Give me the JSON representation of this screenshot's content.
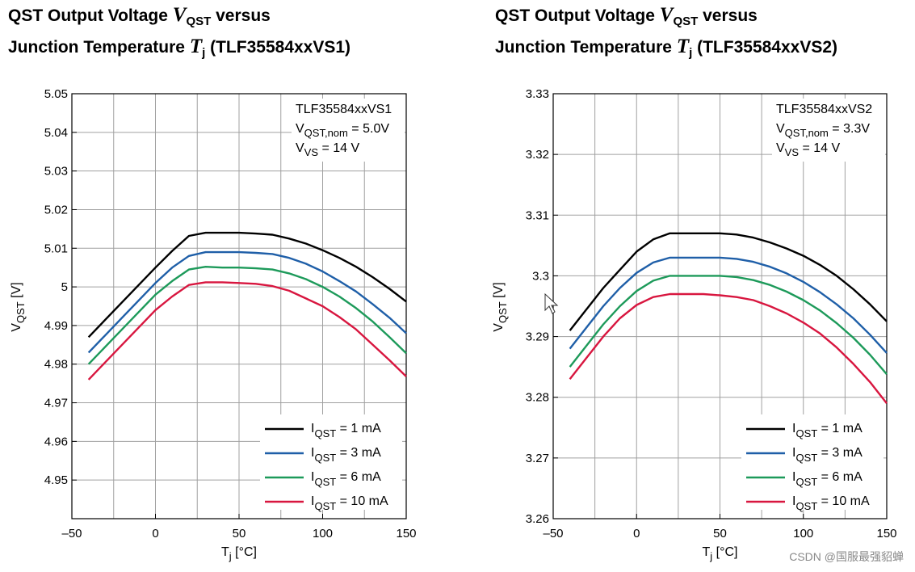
{
  "titles": [
    {
      "line1_pre": "QST Output Voltage ",
      "sym1": "V",
      "sym1_sub": "QST",
      "line1_post": " versus",
      "line2_pre": "Junction Temperature ",
      "sym2": "T",
      "sym2_sub": "j",
      "line2_post": " (TLF35584xxVS1)"
    },
    {
      "line1_pre": "QST Output Voltage ",
      "sym1": "V",
      "sym1_sub": "QST",
      "line1_post": " versus",
      "line2_pre": "Junction Temperature ",
      "sym2": "T",
      "sym2_sub": "j",
      "line2_post": " (TLF35584xxVS2)"
    }
  ],
  "watermark": "CSDN @国服最强貂蝉",
  "chart_data": [
    {
      "type": "line",
      "title": "QST Output Voltage VQST versus Junction Temperature Tj (TLF35584xxVS1)",
      "xlabel": {
        "main": "T",
        "sub": "j",
        "unit": " [°C]"
      },
      "ylabel": {
        "main": "V",
        "sub": "QST",
        "unit": " [V]"
      },
      "xlim": [
        -50,
        150
      ],
      "ylim": [
        4.94,
        5.05
      ],
      "xticks": [
        -50,
        0,
        50,
        100,
        150
      ],
      "xtick_labels": [
        "–50",
        "0",
        "50",
        "100",
        "150"
      ],
      "xgrid": [
        -50,
        -25,
        0,
        25,
        50,
        75,
        100,
        125,
        150
      ],
      "yticks": [
        4.95,
        4.96,
        4.97,
        4.98,
        4.99,
        5.0,
        5.01,
        5.02,
        5.03,
        5.04,
        5.05
      ],
      "ytick_labels": [
        "4.95",
        "4.96",
        "4.97",
        "4.98",
        "4.99",
        "5",
        "5.01",
        "5.02",
        "5.03",
        "5.04",
        "5.05"
      ],
      "annotation": {
        "line1": "TLF35584xxVS1",
        "line2_main": "V",
        "line2_sub": "QST,nom",
        "line2_val": " = 5.0V",
        "line3_main": "V",
        "line3_sub": "VS",
        "line3_val": " = 14 V"
      },
      "legend_position": "bottom-right",
      "x": [
        -40,
        -30,
        -20,
        -10,
        0,
        10,
        20,
        30,
        40,
        50,
        60,
        70,
        80,
        90,
        100,
        110,
        120,
        130,
        140,
        150
      ],
      "series": [
        {
          "name_main": "I",
          "name_sub": "QST",
          "name_val": " = 1 mA",
          "color": "#000000",
          "values": [
            4.987,
            4.9915,
            4.996,
            5.0005,
            5.005,
            5.0093,
            5.0132,
            5.014,
            5.014,
            5.014,
            5.0138,
            5.0135,
            5.0125,
            5.0112,
            5.0095,
            5.0075,
            5.0052,
            5.0025,
            4.9995,
            4.9962
          ]
        },
        {
          "name_main": "I",
          "name_sub": "QST",
          "name_val": " = 3 mA",
          "color": "#1f5fa8",
          "values": [
            4.983,
            4.9875,
            4.992,
            4.9965,
            5.001,
            5.005,
            5.008,
            5.009,
            5.009,
            5.009,
            5.0088,
            5.0085,
            5.0075,
            5.006,
            5.004,
            5.0015,
            4.9988,
            4.9955,
            4.992,
            4.988
          ]
        },
        {
          "name_main": "I",
          "name_sub": "QST",
          "name_val": " = 6 mA",
          "color": "#1d9a5a",
          "values": [
            4.98,
            4.9845,
            4.989,
            4.9935,
            4.998,
            5.0015,
            5.0045,
            5.0052,
            5.005,
            5.005,
            5.0048,
            5.0045,
            5.0035,
            5.002,
            5.0,
            4.9975,
            4.9945,
            4.991,
            4.987,
            4.9828
          ]
        },
        {
          "name_main": "I",
          "name_sub": "QST",
          "name_val": " = 10 mA",
          "color": "#d8163f",
          "values": [
            4.976,
            4.9805,
            4.985,
            4.9895,
            4.994,
            4.9975,
            5.0005,
            5.0012,
            5.0012,
            5.001,
            5.0008,
            5.0002,
            4.999,
            4.997,
            4.995,
            4.9922,
            4.989,
            4.985,
            4.981,
            4.9768
          ]
        }
      ]
    },
    {
      "type": "line",
      "title": "QST Output Voltage VQST versus Junction Temperature Tj (TLF35584xxVS2)",
      "xlabel": {
        "main": "T",
        "sub": "j",
        "unit": " [°C]"
      },
      "ylabel": {
        "main": "V",
        "sub": "QST",
        "unit": " [V]"
      },
      "xlim": [
        -50,
        150
      ],
      "ylim": [
        3.26,
        3.33
      ],
      "xticks": [
        -50,
        0,
        50,
        100,
        150
      ],
      "xtick_labels": [
        "–50",
        "0",
        "50",
        "100",
        "150"
      ],
      "xgrid": [
        -50,
        -25,
        0,
        25,
        50,
        75,
        100,
        125,
        150
      ],
      "yticks": [
        3.26,
        3.27,
        3.28,
        3.29,
        3.3,
        3.31,
        3.32,
        3.33
      ],
      "ytick_labels": [
        "3.26",
        "3.27",
        "3.28",
        "3.29",
        "3.3",
        "3.31",
        "3.32",
        "3.33"
      ],
      "annotation": {
        "line1": "TLF35584xxVS2",
        "line2_main": "V",
        "line2_sub": "QST,nom",
        "line2_val": " = 3.3V",
        "line3_main": "V",
        "line3_sub": "VS",
        "line3_val": " = 14 V"
      },
      "legend_position": "bottom-right",
      "x": [
        -40,
        -30,
        -20,
        -10,
        0,
        10,
        20,
        30,
        40,
        50,
        60,
        70,
        80,
        90,
        100,
        110,
        120,
        130,
        140,
        150
      ],
      "series": [
        {
          "name_main": "I",
          "name_sub": "QST",
          "name_val": " = 1 mA",
          "color": "#000000",
          "values": [
            3.291,
            3.2945,
            3.298,
            3.301,
            3.304,
            3.306,
            3.307,
            3.307,
            3.307,
            3.307,
            3.3068,
            3.3063,
            3.3055,
            3.3045,
            3.3033,
            3.3018,
            3.3,
            3.2978,
            3.2953,
            3.2925
          ]
        },
        {
          "name_main": "I",
          "name_sub": "QST",
          "name_val": " = 3 mA",
          "color": "#1f5fa8",
          "values": [
            3.288,
            3.2915,
            3.295,
            3.298,
            3.3005,
            3.3022,
            3.303,
            3.303,
            3.303,
            3.303,
            3.3028,
            3.3023,
            3.3015,
            3.3004,
            3.299,
            3.2973,
            3.2953,
            3.293,
            3.2903,
            3.2873
          ]
        },
        {
          "name_main": "I",
          "name_sub": "QST",
          "name_val": " = 6 mA",
          "color": "#1d9a5a",
          "values": [
            3.285,
            3.2885,
            3.292,
            3.295,
            3.2975,
            3.2992,
            3.3,
            3.3,
            3.3,
            3.3,
            3.2998,
            3.2993,
            3.2985,
            3.2974,
            3.296,
            3.2943,
            3.2922,
            3.2898,
            3.287,
            3.2838
          ]
        },
        {
          "name_main": "I",
          "name_sub": "QST",
          "name_val": " = 10 mA",
          "color": "#d8163f",
          "values": [
            3.283,
            3.2865,
            3.29,
            3.293,
            3.2952,
            3.2965,
            3.297,
            3.297,
            3.297,
            3.2968,
            3.2965,
            3.296,
            3.295,
            3.2938,
            3.2923,
            3.2905,
            3.2882,
            3.2855,
            3.2825,
            3.279
          ]
        }
      ]
    }
  ]
}
